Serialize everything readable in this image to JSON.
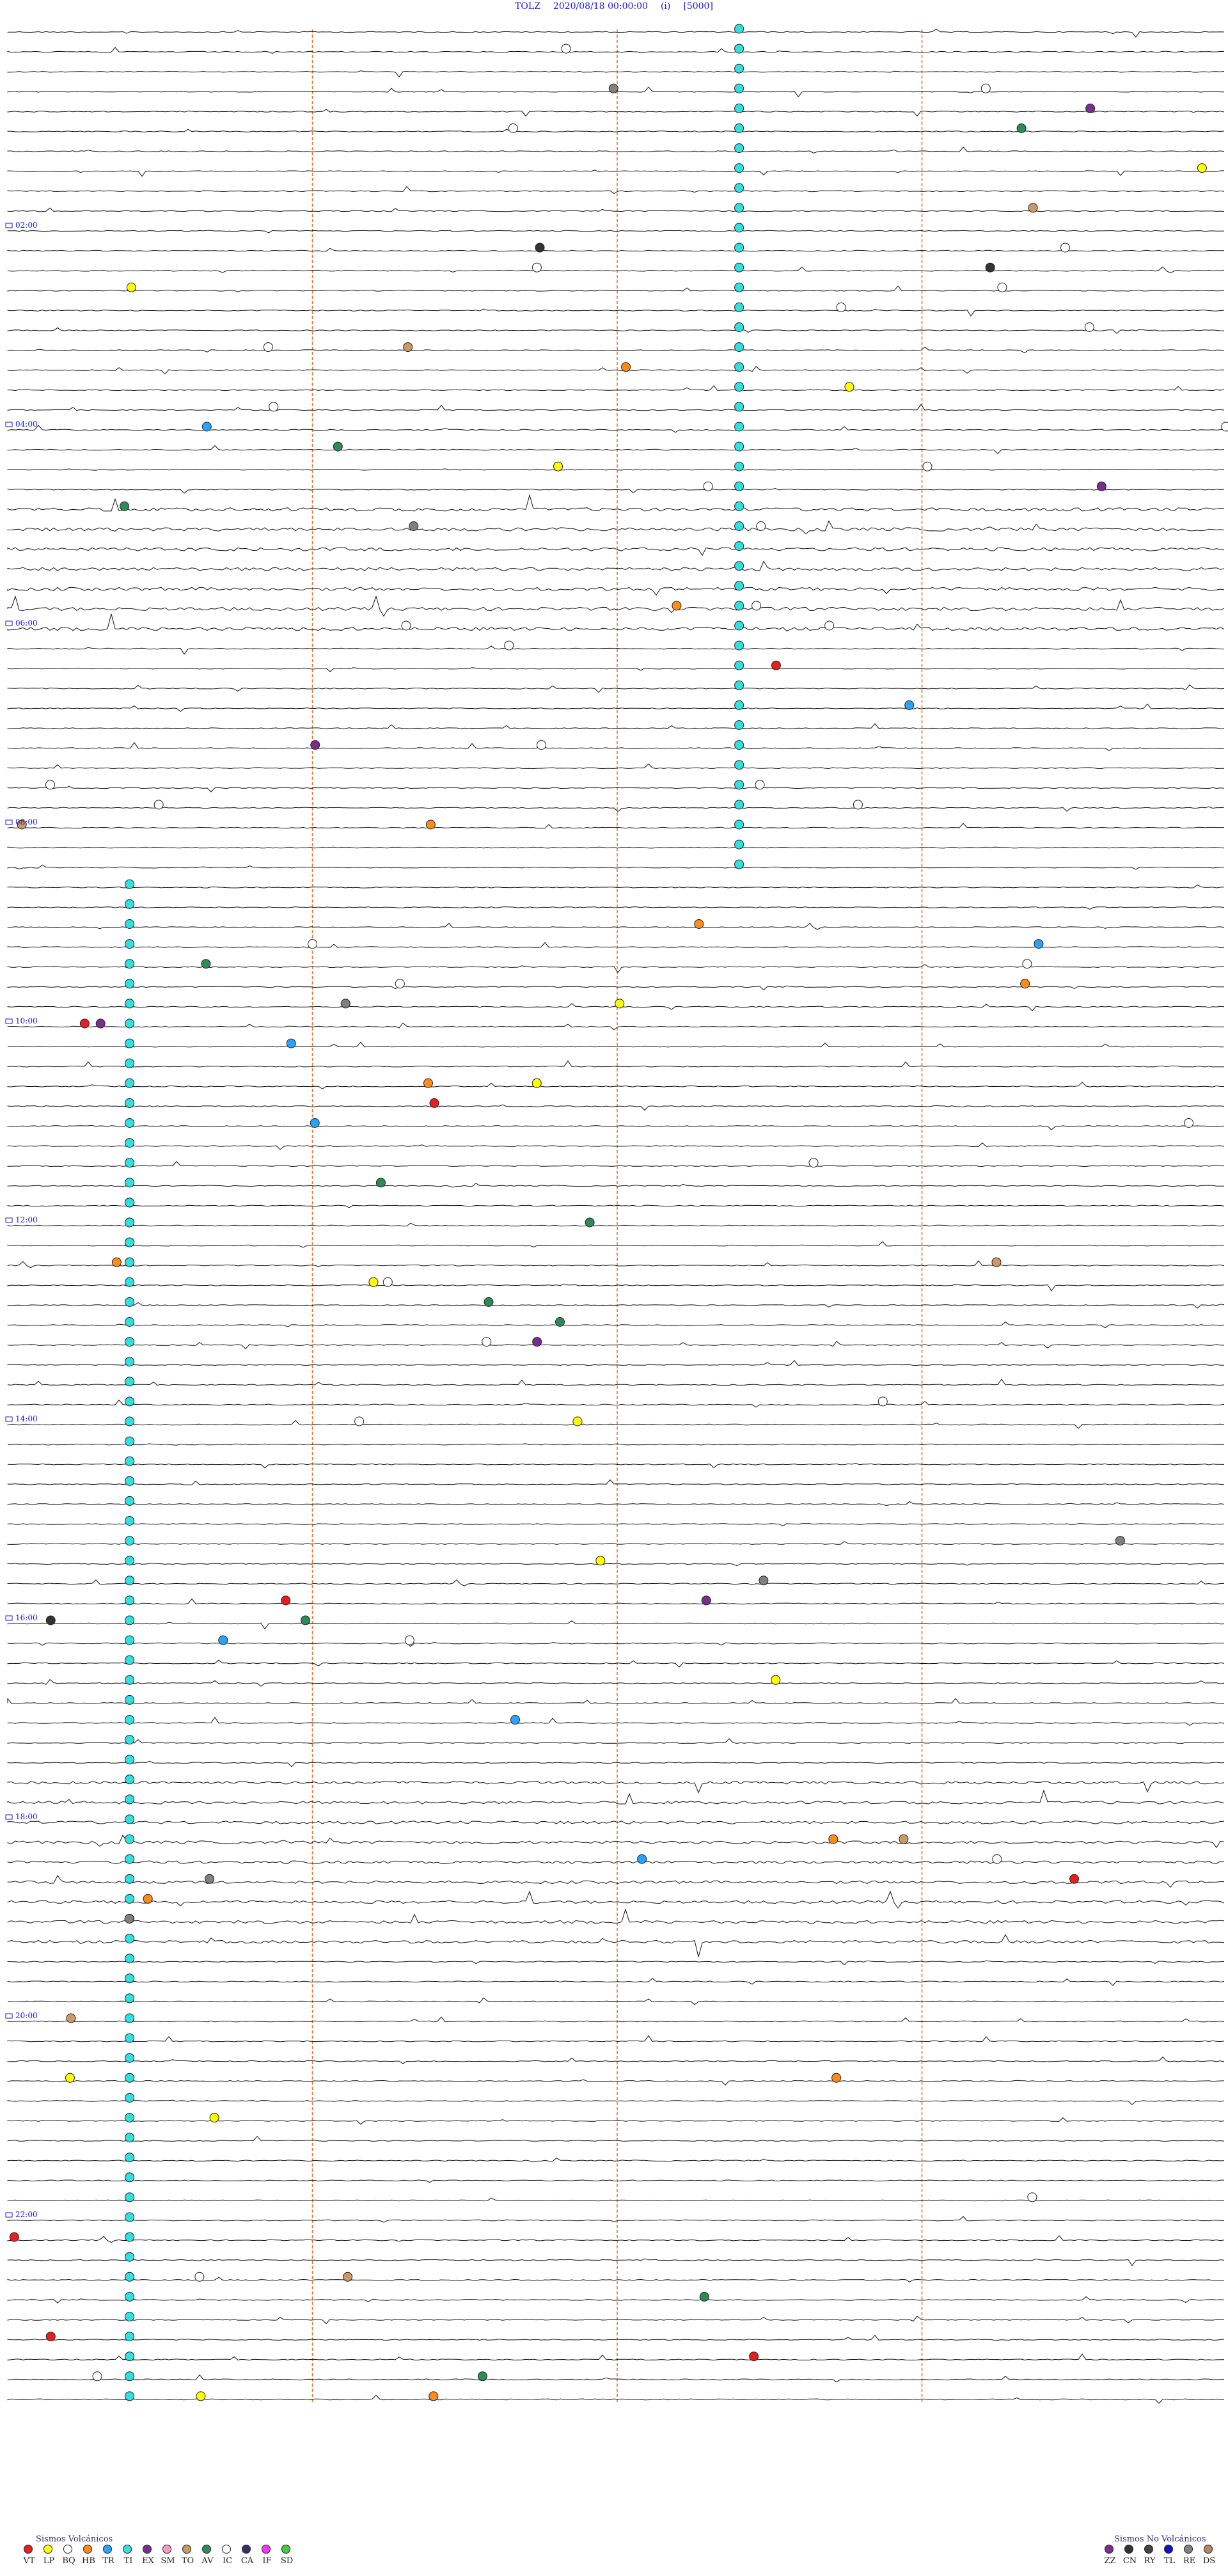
{
  "header": {
    "station": "TOLZ",
    "datetime": "2020/08/18 00:00:00",
    "mode": "(i)",
    "scale": "[5000]"
  },
  "chart_data": {
    "type": "seismogram",
    "trace_count": 120,
    "minutes_per_trace": 12,
    "hour_labels": [
      {
        "trace": 10,
        "label": "02:00"
      },
      {
        "trace": 20,
        "label": "04:00"
      },
      {
        "trace": 30,
        "label": "06:00"
      },
      {
        "trace": 40,
        "label": "08:00"
      },
      {
        "trace": 50,
        "label": "10:00"
      },
      {
        "trace": 60,
        "label": "12:00"
      },
      {
        "trace": 70,
        "label": "14:00"
      },
      {
        "trace": 80,
        "label": "16:00"
      },
      {
        "trace": 90,
        "label": "18:00"
      },
      {
        "trace": 100,
        "label": "20:00"
      },
      {
        "trace": 110,
        "label": "22:00"
      }
    ],
    "minute_markers": [
      3,
      6,
      9
    ],
    "trace_color": "#111111",
    "marker_line_color": "#e07b3a",
    "label_color": "#1a1ad4",
    "noise_bands": [
      {
        "from": 24,
        "to": 30,
        "level": 2.6
      },
      {
        "from": 88,
        "to": 96,
        "level": 2.2
      }
    ],
    "ti_columns": [
      {
        "minute": 7.2,
        "from": 0,
        "to": 42
      },
      {
        "minute": 1.2,
        "from": 43,
        "to": 62
      },
      {
        "minute": 1.2,
        "from": 59,
        "to": 123
      }
    ]
  },
  "legend": {
    "volcanic_title": "Sismos Volcánicos",
    "volcanic": [
      {
        "code": "VT",
        "color": "#e81f1f"
      },
      {
        "code": "LP",
        "color": "#ffff00"
      },
      {
        "code": "BQ",
        "color": "#ffffff"
      },
      {
        "code": "HB",
        "color": "#ff8c1a"
      },
      {
        "code": "TR",
        "color": "#2aa3ff"
      },
      {
        "code": "TI",
        "color": "#33e0e0"
      },
      {
        "code": "EX",
        "color": "#7a2d8f"
      },
      {
        "code": "SM",
        "color": "#ff99cc"
      },
      {
        "code": "TO",
        "color": "#cc9966"
      },
      {
        "code": "AV",
        "color": "#2e8b57"
      },
      {
        "code": "IC",
        "color": "#ffffff"
      },
      {
        "code": "CA",
        "color": "#333366"
      },
      {
        "code": "IF",
        "color": "#ff33ff"
      },
      {
        "code": "SD",
        "color": "#44cc44"
      }
    ],
    "nonvolcanic_title": "Sismos No Volcánicos",
    "nonvolcanic": [
      {
        "code": "ZZ",
        "color": "#7b2d8f"
      },
      {
        "code": "CN",
        "color": "#333333"
      },
      {
        "code": "RY",
        "color": "#444444"
      },
      {
        "code": "TL",
        "color": "#1010d0"
      },
      {
        "code": "RE",
        "color": "#808080"
      },
      {
        "code": "DS",
        "color": "#b08868"
      }
    ]
  }
}
